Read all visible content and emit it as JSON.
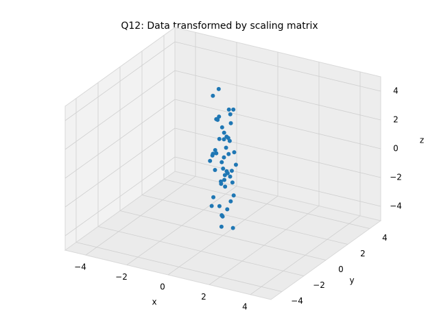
{
  "chart_data": {
    "type": "scatter3d",
    "title": "Q12: Data transformed by scaling matrix",
    "xlabel": "x",
    "ylabel": "y",
    "zlabel": "z",
    "color": "#1f77b4",
    "xlim": [
      -5,
      5
    ],
    "ylim": [
      -5,
      5
    ],
    "zlim": [
      -5,
      5
    ],
    "xticks": [
      {
        "value": -4,
        "label": "−4"
      },
      {
        "value": -2,
        "label": "−2"
      },
      0,
      2,
      4
    ],
    "yticks": [
      {
        "value": -4,
        "label": "−4"
      },
      {
        "value": -2,
        "label": "−2"
      },
      0,
      2,
      4
    ],
    "zticks": [
      {
        "value": -4,
        "label": "−4"
      },
      {
        "value": -2,
        "label": "−2"
      },
      0,
      2,
      4
    ],
    "grid": true,
    "x": [
      0.12,
      -0.35,
      0.48,
      -0.08,
      0.27,
      -0.52,
      0.05,
      0.38,
      -0.21,
      0.61,
      -0.44,
      0.16,
      -0.03,
      0.33,
      -0.29,
      0.09,
      -0.57,
      0.42,
      -0.14,
      0.22,
      0.55,
      -0.18,
      0.07,
      -0.39,
      0.31,
      -0.06,
      0.19,
      -0.47,
      0.64,
      -0.25,
      0.02,
      0.36,
      -0.11,
      0.45,
      -0.33,
      0.14,
      -0.02,
      0.28,
      -0.6,
      0.11,
      -0.2,
      0.5,
      -0.37,
      0.04,
      0.24,
      -0.13,
      0.58,
      -0.28,
      0.17,
      -0.49
    ],
    "y": [
      -0.21,
      0.33,
      0.08,
      -0.46,
      0.15,
      0.27,
      -0.12,
      -0.38,
      0.52,
      0.04,
      -0.09,
      0.41,
      -0.55,
      0.19,
      0.06,
      -0.3,
      0.11,
      -0.17,
      0.44,
      -0.02,
      -0.36,
      0.23,
      0.59,
      -0.14,
      -0.49,
      0.31,
      -0.07,
      0.16,
      -0.25,
      0.37,
      0.48,
      -0.19,
      0.02,
      -0.41,
      0.26,
      -0.58,
      0.13,
      0.39,
      -0.05,
      -0.28,
      0.21,
      0.09,
      -0.33,
      0.47,
      -0.11,
      0.35,
      -0.22,
      0.14,
      -0.43,
      0.01
    ],
    "z": [
      -0.2,
      1.4,
      -2.1,
      3.3,
      -0.9,
      0.6,
      -3.6,
      2.2,
      -1.5,
      0.1,
      4.6,
      -2.8,
      1.0,
      -0.5,
      2.9,
      -4.2,
      0.3,
      1.8,
      -1.1,
      -3.1,
      3.8,
      -0.1,
      2.5,
      -2.4,
      0.8,
      -1.8,
      1.2,
      -0.7,
      4.1,
      -3.9,
      0.4,
      2.0,
      -1.3,
      -0.3,
      3.0,
      -2.6,
      1.6,
      -4.6,
      0.0,
      2.7,
      -1.6,
      0.9,
      -2.9,
      3.5,
      -0.4,
      1.9,
      -1.0,
      5.0,
      -3.3,
      0.5
    ]
  }
}
